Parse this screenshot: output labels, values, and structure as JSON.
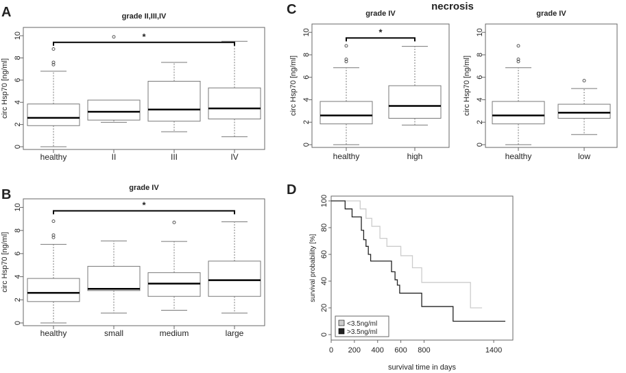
{
  "panel_letters": [
    "A",
    "B",
    "C",
    "D"
  ],
  "figure_text": {
    "necrosis_title": "necrosis"
  },
  "colors": {
    "axis": "#666666",
    "box": "#777777",
    "median": "#000000",
    "survival_low": "#cccccc",
    "survival_high": "#222222"
  },
  "chart_data": [
    {
      "id": "A",
      "type": "boxplot",
      "title": "grade II,III,IV",
      "ylabel": "circ Hsp70 [ng/ml]",
      "ylim": [
        0,
        10.5
      ],
      "yticks": [
        0,
        2,
        4,
        6,
        8,
        10
      ],
      "categories": [
        "healthy",
        "II",
        "III",
        "IV"
      ],
      "boxes": [
        {
          "min": 0.0,
          "q1": 1.9,
          "median": 2.6,
          "q3": 3.85,
          "max": 6.8,
          "outliers": [
            7.4,
            7.6,
            8.8
          ]
        },
        {
          "min": 2.2,
          "q1": 2.4,
          "median": 3.15,
          "q3": 4.2,
          "max": 4.2,
          "outliers": [
            9.9
          ]
        },
        {
          "min": 1.35,
          "q1": 2.3,
          "median": 3.35,
          "q3": 5.9,
          "max": 7.6,
          "outliers": []
        },
        {
          "min": 0.9,
          "q1": 2.5,
          "median": 3.45,
          "q3": 5.3,
          "max": 9.5,
          "outliers": []
        }
      ],
      "significance": {
        "from": 0,
        "to": 3,
        "label": "*",
        "y": 9.4
      }
    },
    {
      "id": "B",
      "type": "boxplot",
      "title": "grade IV",
      "ylabel": "circ Hsp70 [ng/ml]",
      "ylim": [
        0,
        10.5
      ],
      "yticks": [
        0,
        2,
        4,
        6,
        8,
        10
      ],
      "categories": [
        "healthy",
        "small",
        "medium",
        "large"
      ],
      "boxes": [
        {
          "min": 0.0,
          "q1": 1.85,
          "median": 2.6,
          "q3": 3.85,
          "max": 6.8,
          "outliers": [
            7.4,
            7.6,
            8.8
          ]
        },
        {
          "min": 0.85,
          "q1": 2.8,
          "median": 2.95,
          "q3": 4.9,
          "max": 7.1,
          "outliers": []
        },
        {
          "min": 1.1,
          "q1": 2.3,
          "median": 3.4,
          "q3": 4.35,
          "max": 7.05,
          "outliers": [
            8.7
          ]
        },
        {
          "min": 0.85,
          "q1": 2.3,
          "median": 3.7,
          "q3": 5.35,
          "max": 8.75,
          "outliers": []
        }
      ],
      "significance": {
        "from": 0,
        "to": 3,
        "label": "*",
        "y": 9.7
      }
    },
    {
      "id": "C1",
      "type": "boxplot",
      "title": "grade IV",
      "ylabel": "circ Hsp70 [ng/ml]",
      "ylim": [
        0,
        10.5
      ],
      "yticks": [
        0,
        2,
        4,
        6,
        8,
        10
      ],
      "categories": [
        "healthy",
        "high"
      ],
      "boxes": [
        {
          "min": 0.0,
          "q1": 1.85,
          "median": 2.6,
          "q3": 3.85,
          "max": 6.85,
          "outliers": [
            7.4,
            7.6,
            8.8
          ]
        },
        {
          "min": 1.75,
          "q1": 2.35,
          "median": 3.45,
          "q3": 5.25,
          "max": 8.75,
          "outliers": []
        }
      ],
      "significance": {
        "from": 0,
        "to": 1,
        "label": "*",
        "y": 9.5
      }
    },
    {
      "id": "C2",
      "type": "boxplot",
      "title": "grade IV",
      "ylabel": "circ Hsp70 [ng/ml]",
      "ylim": [
        0,
        10.5
      ],
      "yticks": [
        0,
        2,
        4,
        6,
        8,
        10
      ],
      "categories": [
        "healthy",
        "low"
      ],
      "boxes": [
        {
          "min": 0.0,
          "q1": 1.85,
          "median": 2.6,
          "q3": 3.85,
          "max": 6.85,
          "outliers": [
            7.4,
            7.6,
            8.8
          ]
        },
        {
          "min": 0.9,
          "q1": 2.35,
          "median": 2.85,
          "q3": 3.6,
          "max": 5.0,
          "outliers": [
            5.7
          ]
        }
      ]
    },
    {
      "id": "D",
      "type": "line",
      "xlabel": "survival time in days",
      "ylabel": "survival probability [%]",
      "xlim": [
        0,
        1500
      ],
      "ylim": [
        0,
        100
      ],
      "xticks": [
        0,
        200,
        400,
        600,
        800,
        1400
      ],
      "yticks": [
        0,
        20,
        40,
        60,
        80,
        100
      ],
      "series": [
        {
          "name": "<3.5ng/ml",
          "x": [
            0,
            250,
            300,
            350,
            420,
            480,
            600,
            700,
            780,
            1200,
            1300
          ],
          "y": [
            100,
            94,
            87,
            81,
            72,
            66,
            59,
            50,
            39,
            20,
            20
          ]
        },
        {
          "name": ">3.5ng/ml",
          "x": [
            0,
            120,
            180,
            260,
            280,
            300,
            320,
            340,
            520,
            550,
            570,
            590,
            780,
            1050,
            1500
          ],
          "y": [
            100,
            94,
            88,
            78,
            71,
            66,
            60,
            55,
            47,
            41,
            37,
            31,
            21,
            10,
            10
          ]
        }
      ],
      "legend": {
        "position": "bottom-left",
        "entries": [
          "<3.5ng/ml",
          ">3.5ng/ml"
        ]
      }
    }
  ]
}
